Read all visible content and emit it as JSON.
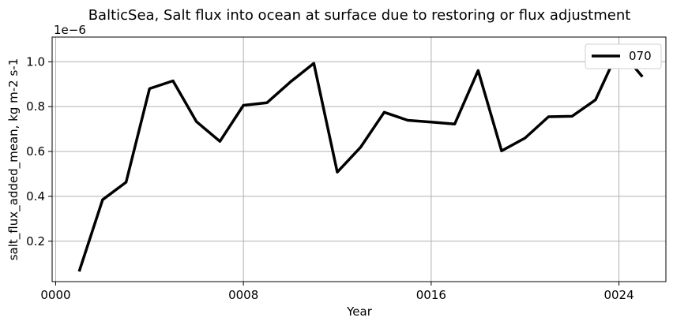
{
  "chart_data": {
    "type": "line",
    "title": "BalticSea, Salt flux into ocean at surface due to restoring or flux adjustment",
    "xlabel": "Year",
    "ylabel": "salt_flux_added_mean, kg m-2 s-1",
    "offset_text": "1e−6",
    "x_ticks": [
      {
        "value": 0,
        "label": "0000"
      },
      {
        "value": 8,
        "label": "0008"
      },
      {
        "value": 16,
        "label": "0016"
      },
      {
        "value": 24,
        "label": "0024"
      }
    ],
    "y_ticks": [
      {
        "value": 0.2,
        "label": "0.2"
      },
      {
        "value": 0.4,
        "label": "0.4"
      },
      {
        "value": 0.6,
        "label": "0.6"
      },
      {
        "value": 0.8,
        "label": "0.8"
      },
      {
        "value": 1.0,
        "label": "1.0"
      }
    ],
    "xlim": [
      -0.15,
      26.0
    ],
    "ylim": [
      0.02,
      1.11
    ],
    "grid": true,
    "legend_position": "upper right",
    "series": [
      {
        "name": "070",
        "color": "#000000",
        "x": [
          1,
          2,
          3,
          4,
          5,
          6,
          7,
          8,
          9,
          10,
          11,
          12,
          13,
          14,
          15,
          16,
          17,
          18,
          19,
          20,
          21,
          22,
          23,
          24,
          25
        ],
        "y": [
          0.065,
          0.385,
          0.463,
          0.88,
          0.915,
          0.733,
          0.645,
          0.806,
          0.817,
          0.91,
          0.993,
          0.508,
          0.62,
          0.775,
          0.739,
          0.731,
          0.722,
          0.961,
          0.603,
          0.66,
          0.755,
          0.757,
          0.83,
          1.057,
          0.933
        ]
      }
    ]
  }
}
